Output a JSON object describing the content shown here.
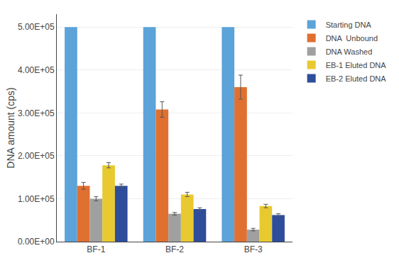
{
  "chart_data": {
    "type": "bar",
    "categories": [
      "BF-1",
      "BF-2",
      "BF-3"
    ],
    "series": [
      {
        "name": "Starting DNA",
        "color": "#5BA3D9",
        "values": [
          500000,
          500000,
          500000
        ],
        "errors": [
          0,
          0,
          0
        ]
      },
      {
        "name": "DNA  Unbound",
        "color": "#E07030",
        "values": [
          130000,
          308000,
          360000
        ],
        "errors": [
          8000,
          18000,
          28000
        ]
      },
      {
        "name": "DNA Washed",
        "color": "#A0A0A0",
        "values": [
          100000,
          65000,
          28000
        ],
        "errors": [
          5000,
          3000,
          3000
        ]
      },
      {
        "name": "EB-1 Eluted DNA",
        "color": "#E8C930",
        "values": [
          178000,
          110000,
          83000
        ],
        "errors": [
          6000,
          5000,
          4000
        ]
      },
      {
        "name": "EB-2 Eluted DNA",
        "color": "#2E4D9A",
        "values": [
          130000,
          76000,
          62000
        ],
        "errors": [
          4000,
          3000,
          3000
        ]
      }
    ],
    "ylabel": "DNA amount (cps)",
    "ylim": [
      0,
      530000
    ],
    "yticks": [
      {
        "value": 0,
        "label": "0.00E+00"
      },
      {
        "value": 100000,
        "label": "1.00E+05"
      },
      {
        "value": 200000,
        "label": "2.00E+05"
      },
      {
        "value": 300000,
        "label": "3.00E+05"
      },
      {
        "value": 400000,
        "label": "4.00E+05"
      },
      {
        "value": 500000,
        "label": "5.00E+05"
      }
    ],
    "grid": true,
    "legend": "right"
  }
}
